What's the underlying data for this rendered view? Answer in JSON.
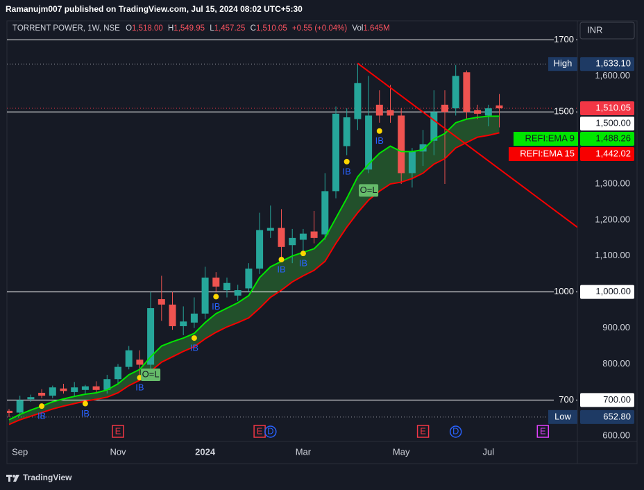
{
  "header": "Ramanujm007 published on TradingView.com, Jul 15, 2024 08:02 UTC+5:30",
  "footer": "TradingView",
  "chart_data": {
    "type": "candlestick",
    "legend": {
      "symbol": "TORRENT POWER, 1W, NSE",
      "fields": [
        {
          "key": "O",
          "value": "1,518.00"
        },
        {
          "key": "H",
          "value": "1,549.95"
        },
        {
          "key": "L",
          "value": "1,457.25"
        },
        {
          "key": "C",
          "value": "1,510.05"
        }
      ],
      "change": "+0.55 (+0.04%)",
      "volume": {
        "key": "Vol",
        "value": "1.645M"
      }
    },
    "currency": "INR",
    "categories": [
      null,
      "Sep",
      null,
      null,
      null,
      null,
      null,
      null,
      null,
      null,
      "Nov",
      null,
      null,
      null,
      null,
      null,
      null,
      null,
      "2024",
      null,
      null,
      null,
      null,
      null,
      null,
      null,
      null,
      "Mar",
      null,
      null,
      null,
      null,
      null,
      null,
      null,
      null,
      "May",
      null,
      null,
      null,
      null,
      null,
      null,
      null,
      "Jul",
      null
    ],
    "open": [
      670,
      665,
      702,
      720,
      712,
      732,
      722,
      728,
      738,
      728,
      758,
      792,
      812,
      798,
      980,
      965,
      905,
      915,
      940,
      1040,
      1005,
      990,
      1010,
      1065,
      1170,
      1178,
      1130,
      1145,
      1168,
      1160,
      1280,
      1405,
      1480,
      1340,
      1520,
      1505,
      1490,
      1330,
      1390,
      1420,
      1520,
      1510,
      1610,
      1505,
      1490,
      1518
    ],
    "high": [
      675,
      712,
      715,
      730,
      740,
      745,
      750,
      742,
      752,
      770,
      800,
      850,
      838,
      1000,
      1045,
      1000,
      960,
      985,
      1070,
      1055,
      1040,
      1020,
      1080,
      1220,
      1240,
      1230,
      1175,
      1175,
      1225,
      1330,
      1515,
      1510,
      1633.1,
      1600,
      1560,
      1575,
      1510,
      1400,
      1450,
      1560,
      1560,
      1630,
      1615,
      1520,
      1520,
      1549.95
    ],
    "low": [
      652.8,
      655,
      695,
      705,
      705,
      718,
      710,
      715,
      720,
      718,
      745,
      785,
      770,
      785,
      920,
      895,
      880,
      900,
      925,
      1000,
      985,
      975,
      1000,
      1050,
      1150,
      1090,
      1080,
      1110,
      1135,
      1145,
      1260,
      1380,
      1450,
      1330,
      1470,
      1470,
      1300,
      1290,
      1350,
      1380,
      1300,
      1490,
      1480,
      1480,
      1460,
      1457.25
    ],
    "close": [
      664,
      700,
      708,
      712,
      735,
      725,
      735,
      738,
      728,
      758,
      792,
      838,
      798,
      955,
      965,
      905,
      918,
      940,
      1040,
      1015,
      1025,
      1005,
      1065,
      1172,
      1178,
      1125,
      1150,
      1162,
      1150,
      1280,
      1495,
      1485,
      1580,
      1490,
      1490,
      1490,
      1330,
      1390,
      1410,
      1500,
      1500,
      1600,
      1500,
      1495,
      1510,
      1510.05
    ],
    "up_color": "#26a69a",
    "down_color": "#ef5350",
    "series": [
      {
        "name": "REFI:EMA 9",
        "color": "#00e600",
        "last_label": "1,488.26",
        "values": [
          645,
          660,
          672,
          683,
          695,
          703,
          710,
          716,
          720,
          728,
          745,
          770,
          785,
          820,
          850,
          862,
          872,
          885,
          915,
          940,
          955,
          970,
          990,
          1040,
          1070,
          1085,
          1100,
          1110,
          1120,
          1150,
          1205,
          1260,
          1320,
          1355,
          1385,
          1405,
          1390,
          1390,
          1395,
          1425,
          1440,
          1470,
          1480,
          1485,
          1488,
          1488.26
        ]
      },
      {
        "name": "REFI:EMA 15",
        "color": "#f70000",
        "last_label": "1,442.02",
        "values": [
          632,
          645,
          655,
          665,
          675,
          683,
          690,
          697,
          702,
          708,
          720,
          740,
          755,
          780,
          805,
          820,
          835,
          848,
          870,
          888,
          903,
          915,
          928,
          955,
          985,
          1005,
          1028,
          1045,
          1060,
          1085,
          1135,
          1180,
          1220,
          1255,
          1280,
          1300,
          1305,
          1315,
          1330,
          1355,
          1370,
          1400,
          1415,
          1430,
          1435,
          1442.02
        ]
      }
    ],
    "ylim": [
      585,
      1753
    ],
    "yticks": [
      {
        "value": 600,
        "label": "600.00"
      },
      {
        "value": 800,
        "label": "800.00"
      },
      {
        "value": 900,
        "label": "900.00"
      },
      {
        "value": 1100,
        "label": "1,100.00"
      },
      {
        "value": 1200,
        "label": "1,200.00"
      },
      {
        "value": 1300,
        "label": "1,300.00"
      },
      {
        "value": 1600,
        "label": "1,600.00"
      }
    ],
    "horizontal_lines": [
      {
        "value": 1700
      },
      {
        "value": 1500,
        "tag": "1,500.00"
      },
      {
        "value": 1000,
        "tag": "1,000.00"
      },
      {
        "value": 700,
        "tag": "700.00"
      }
    ],
    "last_price": {
      "value": 1510.05,
      "label": "1,510.05"
    },
    "price_high": {
      "name": "High",
      "value": 1633.1,
      "label": "1,633.10"
    },
    "price_low": {
      "name": "Low",
      "value": 652.8,
      "label": "652.80"
    },
    "trendline": {
      "x": [
        32,
        52.2
      ],
      "y": [
        1635,
        1179
      ],
      "color": "#f70000"
    },
    "signals": [
      {
        "label": "IB",
        "index": 3,
        "price": 683
      },
      {
        "label": "IB",
        "index": 7,
        "price": 690
      },
      {
        "label": "IB",
        "index": 12,
        "price": 762
      },
      {
        "label": "IB",
        "index": 17,
        "price": 872
      },
      {
        "label": "IB",
        "index": 19,
        "price": 987
      },
      {
        "label": "IB",
        "index": 25,
        "price": 1090
      },
      {
        "label": "IB",
        "index": 27,
        "price": 1107
      },
      {
        "label": "IB",
        "index": 31,
        "price": 1362
      },
      {
        "label": "IB",
        "index": 34,
        "price": 1447
      },
      {
        "label": "O=L",
        "index": 13,
        "price": 770
      },
      {
        "label": "O=L",
        "index": 33,
        "price": 1282
      }
    ],
    "events": [
      {
        "label": "E",
        "index": 10,
        "color": "#f23645"
      },
      {
        "label": "E",
        "index": 23,
        "color": "#f23645"
      },
      {
        "label": "D",
        "index": 24,
        "color": "#2962ff"
      },
      {
        "label": "E",
        "index": 38,
        "color": "#f23645"
      },
      {
        "label": "D",
        "index": 41,
        "color": "#2962ff"
      },
      {
        "label": "E",
        "index": 49,
        "color": "#e040fb"
      }
    ]
  }
}
